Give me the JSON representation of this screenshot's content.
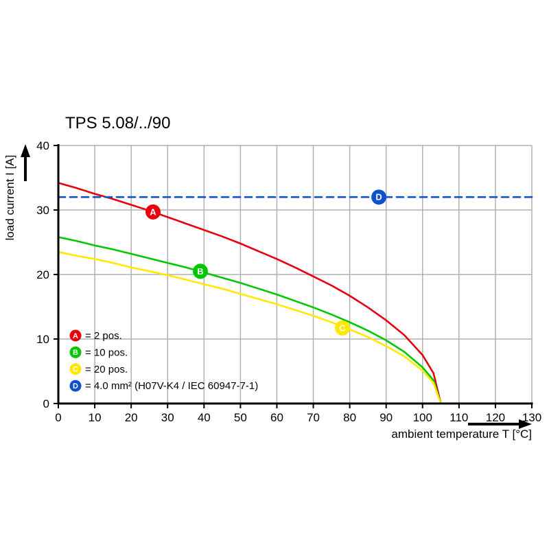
{
  "chart_data": {
    "type": "line",
    "title": "TPS 5.08/../90",
    "xlabel": "ambient temperature T [°C]",
    "ylabel": "load current I [A]",
    "xlim": [
      0,
      130
    ],
    "ylim": [
      0,
      40
    ],
    "xticks": [
      0,
      10,
      20,
      30,
      40,
      50,
      60,
      70,
      80,
      90,
      100,
      110,
      120,
      130
    ],
    "yticks": [
      0,
      10,
      20,
      30,
      40
    ],
    "grid": true,
    "legend_position": "lower-left-inside",
    "colors": {
      "grid": "#b0b0b0",
      "axis": "#000000",
      "background": "#ffffff"
    },
    "series": [
      {
        "name": "A",
        "legend": "= 2 pos.",
        "color": "#e8000d",
        "dashed": false,
        "marker": [
          26,
          29.7
        ],
        "points": [
          [
            0,
            34.2
          ],
          [
            5,
            33.4
          ],
          [
            10,
            32.5
          ],
          [
            15,
            31.7
          ],
          [
            20,
            30.8
          ],
          [
            25,
            29.9
          ],
          [
            30,
            28.9
          ],
          [
            35,
            27.9
          ],
          [
            40,
            26.9
          ],
          [
            45,
            25.9
          ],
          [
            50,
            24.8
          ],
          [
            55,
            23.6
          ],
          [
            60,
            22.4
          ],
          [
            65,
            21.1
          ],
          [
            70,
            19.7
          ],
          [
            75,
            18.3
          ],
          [
            80,
            16.7
          ],
          [
            85,
            14.9
          ],
          [
            90,
            12.9
          ],
          [
            95,
            10.6
          ],
          [
            100,
            7.5
          ],
          [
            103,
            4.7
          ],
          [
            105,
            0
          ]
        ]
      },
      {
        "name": "B",
        "legend": "= 10 pos.",
        "color": "#00c800",
        "dashed": false,
        "marker": [
          39,
          20.5
        ],
        "points": [
          [
            0,
            25.8
          ],
          [
            5,
            25.2
          ],
          [
            10,
            24.5
          ],
          [
            15,
            23.9
          ],
          [
            20,
            23.2
          ],
          [
            25,
            22.5
          ],
          [
            30,
            21.8
          ],
          [
            35,
            21.1
          ],
          [
            40,
            20.3
          ],
          [
            45,
            19.5
          ],
          [
            50,
            18.7
          ],
          [
            55,
            17.8
          ],
          [
            60,
            16.9
          ],
          [
            65,
            15.9
          ],
          [
            70,
            14.9
          ],
          [
            75,
            13.8
          ],
          [
            80,
            12.6
          ],
          [
            85,
            11.3
          ],
          [
            90,
            9.8
          ],
          [
            95,
            8.0
          ],
          [
            100,
            5.6
          ],
          [
            103,
            3.6
          ],
          [
            105,
            0
          ]
        ]
      },
      {
        "name": "C",
        "legend": "= 20 pos.",
        "color": "#ffe900",
        "dashed": false,
        "marker": [
          78,
          11.7
        ],
        "points": [
          [
            0,
            23.5
          ],
          [
            5,
            22.9
          ],
          [
            10,
            22.4
          ],
          [
            15,
            21.8
          ],
          [
            20,
            21.1
          ],
          [
            25,
            20.5
          ],
          [
            30,
            19.9
          ],
          [
            35,
            19.2
          ],
          [
            40,
            18.5
          ],
          [
            45,
            17.8
          ],
          [
            50,
            17.0
          ],
          [
            55,
            16.2
          ],
          [
            60,
            15.4
          ],
          [
            65,
            14.5
          ],
          [
            70,
            13.6
          ],
          [
            75,
            12.6
          ],
          [
            80,
            11.5
          ],
          [
            85,
            10.3
          ],
          [
            90,
            8.9
          ],
          [
            95,
            7.3
          ],
          [
            100,
            5.1
          ],
          [
            103,
            3.2
          ],
          [
            105,
            0
          ]
        ]
      },
      {
        "name": "D",
        "legend": "= 4.0 mm² (H07V-K4 / IEC 60947-7-1)",
        "color": "#0d52cc",
        "dashed": true,
        "marker": [
          88,
          32
        ],
        "points": [
          [
            0,
            32
          ],
          [
            130,
            32
          ]
        ]
      }
    ]
  }
}
